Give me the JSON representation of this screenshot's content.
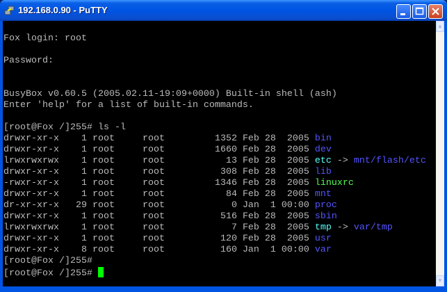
{
  "window": {
    "title": "192.168.0.90 - PuTTY"
  },
  "colors": {
    "text": "#bbbbbb",
    "dir": "#5555ff",
    "symlink": "#55ffff",
    "link_target": "#5555ff",
    "exec": "#55ff55",
    "cursor": "#00ff00"
  },
  "terminal": {
    "pre_lines": [
      "",
      "Fox login: root",
      "",
      "Password:",
      "",
      "",
      "BusyBox v0.60.5 (2005.02.11-19:09+0000) Built-in shell (ash)",
      "Enter 'help' for a list of built-in commands.",
      "",
      "[root@Fox /]255# ls -l"
    ],
    "listing": [
      {
        "perms": "drwxr-xr-x",
        "links": "1",
        "owner": "root",
        "group": "root",
        "size": "1352",
        "date": "Feb 28  2005",
        "name": "bin",
        "type": "dir"
      },
      {
        "perms": "drwxr-xr-x",
        "links": "1",
        "owner": "root",
        "group": "root",
        "size": "1660",
        "date": "Feb 28  2005",
        "name": "dev",
        "type": "dir"
      },
      {
        "perms": "lrwxrwxrwx",
        "links": "1",
        "owner": "root",
        "group": "root",
        "size": "13",
        "date": "Feb 28  2005",
        "name": "etc",
        "type": "symlink",
        "target": "mnt/flash/etc"
      },
      {
        "perms": "drwxr-xr-x",
        "links": "1",
        "owner": "root",
        "group": "root",
        "size": "308",
        "date": "Feb 28  2005",
        "name": "lib",
        "type": "dir"
      },
      {
        "perms": "-rwxr-xr-x",
        "links": "1",
        "owner": "root",
        "group": "root",
        "size": "1346",
        "date": "Feb 28  2005",
        "name": "linuxrc",
        "type": "exec"
      },
      {
        "perms": "drwxr-xr-x",
        "links": "1",
        "owner": "root",
        "group": "root",
        "size": "84",
        "date": "Feb 28  2005",
        "name": "mnt",
        "type": "dir"
      },
      {
        "perms": "dr-xr-xr-x",
        "links": "29",
        "owner": "root",
        "group": "root",
        "size": "0",
        "date": "Jan  1 00:00",
        "name": "proc",
        "type": "dir"
      },
      {
        "perms": "drwxr-xr-x",
        "links": "1",
        "owner": "root",
        "group": "root",
        "size": "516",
        "date": "Feb 28  2005",
        "name": "sbin",
        "type": "dir"
      },
      {
        "perms": "lrwxrwxrwx",
        "links": "1",
        "owner": "root",
        "group": "root",
        "size": "7",
        "date": "Feb 28  2005",
        "name": "tmp",
        "type": "symlink",
        "target": "var/tmp"
      },
      {
        "perms": "drwxr-xr-x",
        "links": "1",
        "owner": "root",
        "group": "root",
        "size": "120",
        "date": "Feb 28  2005",
        "name": "usr",
        "type": "dir"
      },
      {
        "perms": "drwxr-xr-x",
        "links": "8",
        "owner": "root",
        "group": "root",
        "size": "160",
        "date": "Jan  1 00:00",
        "name": "var",
        "type": "dir"
      }
    ],
    "post_lines": [
      "[root@Fox /]255#",
      "[root@Fox /]255# "
    ]
  }
}
